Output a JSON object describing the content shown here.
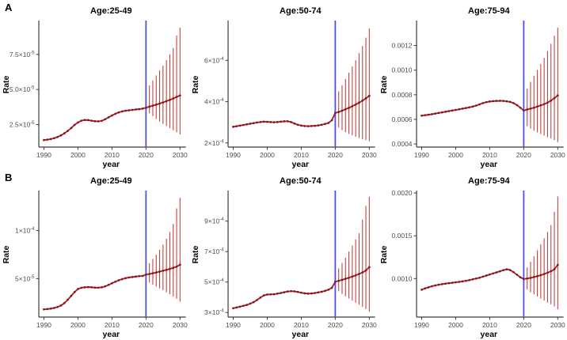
{
  "panels": [
    {
      "label": "A"
    },
    {
      "label": "B"
    }
  ],
  "colors": {
    "background": "#ffffff",
    "axis": "#3c3c3c",
    "tick_label": "#4d4d4d",
    "title_text": "#000000",
    "series_line": "#a31f24",
    "series_point": "#871418",
    "error_bar": "#c0453f",
    "forecast_vline": "#4f52e0"
  },
  "chart_data": [
    {
      "type": "line",
      "panel": "A",
      "title": "Age:25-49",
      "xlabel": "year",
      "ylabel": "Rate",
      "year_start": 1990,
      "year_end": 2030,
      "forecast_start": 2021,
      "vline_x": 2020,
      "xlim": [
        1988.5,
        2031
      ],
      "x_ticks": [
        1990,
        2000,
        2010,
        2020,
        2030
      ],
      "ylim": [
        9e-06,
        9.8e-05
      ],
      "y_ticks": [
        {
          "v": 2.5e-05,
          "m": "2.5×10",
          "e": "-5"
        },
        {
          "v": 5e-05,
          "m": "5.0×10",
          "e": "-5"
        },
        {
          "v": 7.5e-05,
          "m": "7.5×10",
          "e": "-5"
        }
      ],
      "values": [
        1.4e-05,
        1.43e-05,
        1.47e-05,
        1.53e-05,
        1.62e-05,
        1.73e-05,
        1.88e-05,
        2.05e-05,
        2.25e-05,
        2.48e-05,
        2.65e-05,
        2.78e-05,
        2.83e-05,
        2.82e-05,
        2.78e-05,
        2.74e-05,
        2.73e-05,
        2.77e-05,
        2.88e-05,
        3.02e-05,
        3.15e-05,
        3.27e-05,
        3.37e-05,
        3.44e-05,
        3.49e-05,
        3.52e-05,
        3.55e-05,
        3.58e-05,
        3.6e-05,
        3.64e-05,
        3.7e-05,
        3.78e-05,
        3.85e-05,
        3.92e-05,
        4e-05,
        4.08e-05,
        4.17e-05,
        4.26e-05,
        4.36e-05,
        4.47e-05,
        4.58e-05
      ],
      "lower": [
        3.3e-05,
        3.1e-05,
        2.9e-05,
        2.72e-05,
        2.55e-05,
        2.4e-05,
        2.25e-05,
        2.1e-05,
        1.95e-05,
        1.8e-05
      ],
      "upper": [
        5.3e-05,
        5.65e-05,
        6e-05,
        6.35e-05,
        6.7e-05,
        7.1e-05,
        7.5e-05,
        7.95e-05,
        8.85e-05,
        9.4e-05
      ]
    },
    {
      "type": "line",
      "panel": "A",
      "title": "Age:50-74",
      "xlabel": "year",
      "ylabel": "Rate",
      "year_start": 1990,
      "year_end": 2030,
      "forecast_start": 2021,
      "vline_x": 2020,
      "xlim": [
        1988.5,
        2031
      ],
      "x_ticks": [
        1990,
        2000,
        2010,
        2020,
        2030
      ],
      "ylim": [
        0.00018,
        0.000785
      ],
      "y_ticks": [
        {
          "v": 0.0002,
          "m": "2×10",
          "e": "-4"
        },
        {
          "v": 0.0004,
          "m": "4×10",
          "e": "-4"
        },
        {
          "v": 0.0006,
          "m": "6×10",
          "e": "-4"
        }
      ],
      "values": [
        0.000278,
        0.000281,
        0.000284,
        0.000287,
        0.00029,
        0.000293,
        0.000296,
        0.000299,
        0.000301,
        0.000303,
        0.000302,
        0.000301,
        0.0003,
        0.000301,
        0.000303,
        0.000305,
        0.000305,
        0.000301,
        0.000294,
        0.000288,
        0.000284,
        0.000282,
        0.000281,
        0.000282,
        0.000283,
        0.000285,
        0.000288,
        0.000292,
        0.000297,
        0.00031,
        0.000345,
        0.00035,
        0.000356,
        0.000363,
        0.00037,
        0.000378,
        0.000386,
        0.000395,
        0.000405,
        0.000416,
        0.000428
      ],
      "lower": [
        0.000275,
        0.000262,
        0.000252,
        0.000244,
        0.000237,
        0.00023,
        0.000224,
        0.000218,
        0.000213,
        0.000208
      ],
      "upper": [
        0.00045,
        0.00048,
        0.00051,
        0.00054,
        0.00057,
        0.0006,
        0.000635,
        0.00067,
        0.00071,
        0.000755
      ]
    },
    {
      "type": "line",
      "panel": "A",
      "title": "Age:75-94",
      "xlabel": "year",
      "ylabel": "Rate",
      "year_start": 1990,
      "year_end": 2030,
      "forecast_start": 2021,
      "vline_x": 2020,
      "xlim": [
        1988.5,
        2031
      ],
      "x_ticks": [
        1990,
        2000,
        2010,
        2020,
        2030
      ],
      "ylim": [
        0.000375,
        0.00139
      ],
      "y_ticks": [
        {
          "v": 0.0004,
          "m": "0.0004",
          "e": ""
        },
        {
          "v": 0.0006,
          "m": "0.0006",
          "e": ""
        },
        {
          "v": 0.0008,
          "m": "0.0008",
          "e": ""
        },
        {
          "v": 0.001,
          "m": "0.0010",
          "e": ""
        },
        {
          "v": 0.0012,
          "m": "0.0012",
          "e": ""
        }
      ],
      "values": [
        0.00063,
        0.000634,
        0.000638,
        0.000642,
        0.000647,
        0.000652,
        0.000657,
        0.000662,
        0.000667,
        0.000672,
        0.000677,
        0.000682,
        0.000687,
        0.000692,
        0.000698,
        0.000704,
        0.000712,
        0.000722,
        0.000732,
        0.00074,
        0.000745,
        0.000748,
        0.00075,
        0.000751,
        0.00075,
        0.000747,
        0.000742,
        0.000732,
        0.000716,
        0.000695,
        0.000672,
        0.00068,
        0.000687,
        0.000695,
        0.000704,
        0.000714,
        0.000724,
        0.000736,
        0.000752,
        0.000772,
        0.000795
      ],
      "lower": [
        0.000545,
        0.000525,
        0.000508,
        0.000494,
        0.00048,
        0.000468,
        0.000456,
        0.000444,
        0.000432,
        0.000415
      ],
      "upper": [
        0.00085,
        0.000905,
        0.000955,
        0.001,
        0.00105,
        0.0011,
        0.001155,
        0.001215,
        0.00128,
        0.001345
      ]
    },
    {
      "type": "line",
      "panel": "B",
      "title": "Age:25-49",
      "xlabel": "year",
      "ylabel": "Rate",
      "year_start": 1990,
      "year_end": 2030,
      "forecast_start": 2021,
      "vline_x": 2020,
      "xlim": [
        1988.5,
        2031
      ],
      "x_ticks": [
        1990,
        2000,
        2010,
        2020,
        2030
      ],
      "ylim": [
        1e-05,
        0.00014
      ],
      "y_ticks": [
        {
          "v": 5e-05,
          "m": "5×10",
          "e": "-5"
        },
        {
          "v": 0.0001,
          "m": "1×10",
          "e": "-4"
        }
      ],
      "values": [
        1.8e-05,
        1.83e-05,
        1.88e-05,
        1.95e-05,
        2.05e-05,
        2.2e-05,
        2.45e-05,
        2.8e-05,
        3.2e-05,
        3.6e-05,
        3.92e-05,
        4.05e-05,
        4.1e-05,
        4.12e-05,
        4.1e-05,
        4.07e-05,
        4.06e-05,
        4.1e-05,
        4.2e-05,
        4.35e-05,
        4.52e-05,
        4.68e-05,
        4.83e-05,
        4.95e-05,
        5.05e-05,
        5.12e-05,
        5.17e-05,
        5.22e-05,
        5.26e-05,
        5.28e-05,
        5.42e-05,
        5.48e-05,
        5.56e-05,
        5.64e-05,
        5.73e-05,
        5.82e-05,
        5.91e-05,
        6.01e-05,
        6.12e-05,
        6.25e-05,
        6.45e-05
      ],
      "lower": [
        4.6e-05,
        4.38e-05,
        4.18e-05,
        3.98e-05,
        3.78e-05,
        3.58e-05,
        3.38e-05,
        3.15e-05,
        2.9e-05,
        2.6e-05
      ],
      "upper": [
        6.6e-05,
        7.05e-05,
        7.5e-05,
        8e-05,
        8.55e-05,
        9.15e-05,
        9.85e-05,
        0.000107,
        0.000123,
        0.000134
      ]
    },
    {
      "type": "line",
      "panel": "B",
      "title": "Age:50-74",
      "xlabel": "year",
      "ylabel": "Rate",
      "year_start": 1990,
      "year_end": 2030,
      "forecast_start": 2021,
      "vline_x": 2020,
      "xlim": [
        1988.5,
        2031
      ],
      "x_ticks": [
        1990,
        2000,
        2010,
        2020,
        2030
      ],
      "ylim": [
        0.00027,
        0.00109
      ],
      "y_ticks": [
        {
          "v": 0.0003,
          "m": "3×10",
          "e": "-4"
        },
        {
          "v": 0.0005,
          "m": "5×10",
          "e": "-4"
        },
        {
          "v": 0.0007,
          "m": "7×10",
          "e": "-4"
        },
        {
          "v": 0.0009,
          "m": "9×10",
          "e": "-4"
        }
      ],
      "values": [
        0.000328,
        0.000333,
        0.000338,
        0.000344,
        0.00035,
        0.000358,
        0.000368,
        0.000382,
        0.000398,
        0.000412,
        0.000418,
        0.000419,
        0.00042,
        0.000424,
        0.000428,
        0.000433,
        0.000438,
        0.00044,
        0.000439,
        0.000435,
        0.00043,
        0.000426,
        0.000424,
        0.000425,
        0.000428,
        0.000432,
        0.000436,
        0.000442,
        0.00045,
        0.000462,
        0.000502,
        0.000508,
        0.000514,
        0.000521,
        0.000528,
        0.000536,
        0.000544,
        0.000553,
        0.000563,
        0.000576,
        0.000598
      ],
      "lower": [
        0.00044,
        0.000422,
        0.000406,
        0.000392,
        0.000378,
        0.000365,
        0.000352,
        0.000338,
        0.000322,
        0.000305
      ],
      "upper": [
        0.00059,
        0.000625,
        0.00066,
        0.0007,
        0.00074,
        0.00078,
        0.00082,
        0.00091,
        0.001,
        0.00106
      ]
    },
    {
      "type": "line",
      "panel": "B",
      "title": "Age:75-94",
      "xlabel": "year",
      "ylabel": "Rate",
      "year_start": 1990,
      "year_end": 2030,
      "forecast_start": 2021,
      "vline_x": 2020,
      "xlim": [
        1988.5,
        2031
      ],
      "x_ticks": [
        1990,
        2000,
        2010,
        2020,
        2030
      ],
      "ylim": [
        0.00055,
        0.00201
      ],
      "y_ticks": [
        {
          "v": 0.001,
          "m": "0.0010",
          "e": ""
        },
        {
          "v": 0.0015,
          "m": "0.0015",
          "e": ""
        },
        {
          "v": 0.002,
          "m": "0.0020",
          "e": ""
        }
      ],
      "values": [
        0.00087,
        0.000885,
        0.000898,
        0.00091,
        0.00092,
        0.000928,
        0.000935,
        0.000941,
        0.000946,
        0.000951,
        0.000956,
        0.000961,
        0.000967,
        0.000974,
        0.000982,
        0.000991,
        0.001,
        0.00101,
        0.001022,
        0.001035,
        0.001048,
        0.00106,
        0.001072,
        0.001085,
        0.001098,
        0.001108,
        0.0011,
        0.001075,
        0.001045,
        0.001015,
        0.000995,
        0.001,
        0.001008,
        0.001018,
        0.001028,
        0.00104,
        0.001053,
        0.001068,
        0.001085,
        0.001108,
        0.00116
      ],
      "lower": [
        0.00087,
        0.00084,
        0.000815,
        0.00079,
        0.000765,
        0.000742,
        0.00072,
        0.000698,
        0.000675,
        0.00064
      ],
      "upper": [
        0.00113,
        0.001195,
        0.00126,
        0.00133,
        0.0014,
        0.00147,
        0.001545,
        0.001625,
        0.00178,
        0.00196
      ]
    }
  ]
}
